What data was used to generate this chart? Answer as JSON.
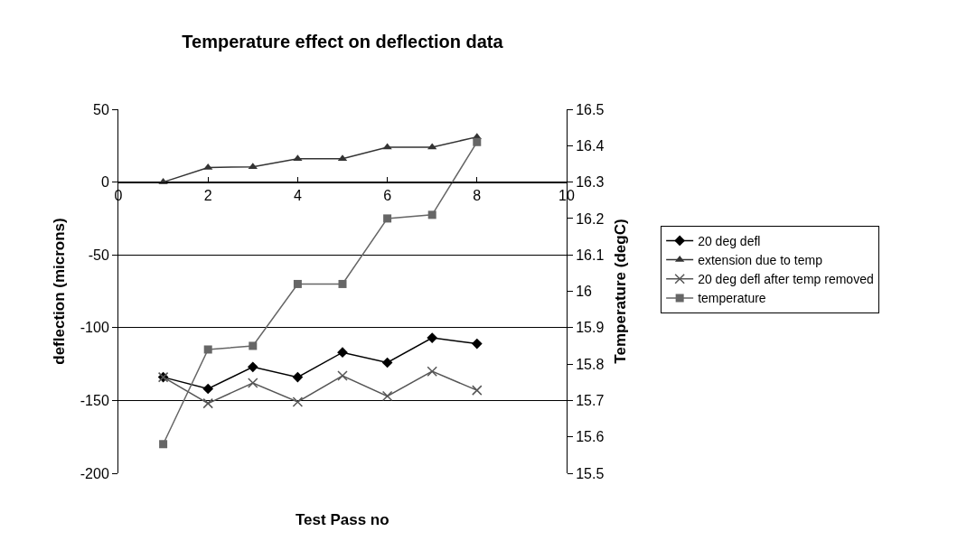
{
  "chart_data": {
    "type": "line",
    "title": "Temperature effect on deflection data",
    "xlabel": "Test Pass no",
    "ylabel": "deflection (microns)",
    "y2label": "Temperature (degC)",
    "x": [
      1,
      2,
      3,
      4,
      5,
      6,
      7,
      8
    ],
    "series": [
      {
        "name": "20 deg defl",
        "color": "#000000",
        "marker": "diamond",
        "values": [
          -134,
          -142,
          -127,
          -134,
          -117,
          -124,
          -107,
          -111
        ]
      },
      {
        "name": "extension due to temp",
        "color": "#333333",
        "marker": "triangle",
        "values": [
          0,
          10,
          10.5,
          16,
          16,
          24,
          24,
          31
        ]
      },
      {
        "name": "20 deg defl after temp removed",
        "color": "#555555",
        "marker": "cross",
        "values": [
          -134,
          -152,
          -138,
          -151,
          -133,
          -147,
          -130,
          -143
        ]
      },
      {
        "name": "temperature",
        "color": "#666666",
        "marker": "square",
        "axis": "y2",
        "values": [
          15.58,
          15.84,
          15.85,
          16.02,
          16.02,
          16.2,
          16.21,
          16.41
        ]
      }
    ],
    "xlim": [
      0,
      10
    ],
    "xticks": [
      0,
      2,
      4,
      6,
      8,
      10
    ],
    "ylim": [
      -200,
      50
    ],
    "yticks": [
      -200,
      -150,
      -100,
      -50,
      0,
      50
    ],
    "y2lim": [
      15.5,
      16.5
    ],
    "y2ticks": [
      15.5,
      15.6,
      15.7,
      15.8,
      15.9,
      16,
      16.1,
      16.2,
      16.3,
      16.4,
      16.5
    ],
    "grid": "y",
    "legend": "right",
    "line_style": "solid"
  }
}
